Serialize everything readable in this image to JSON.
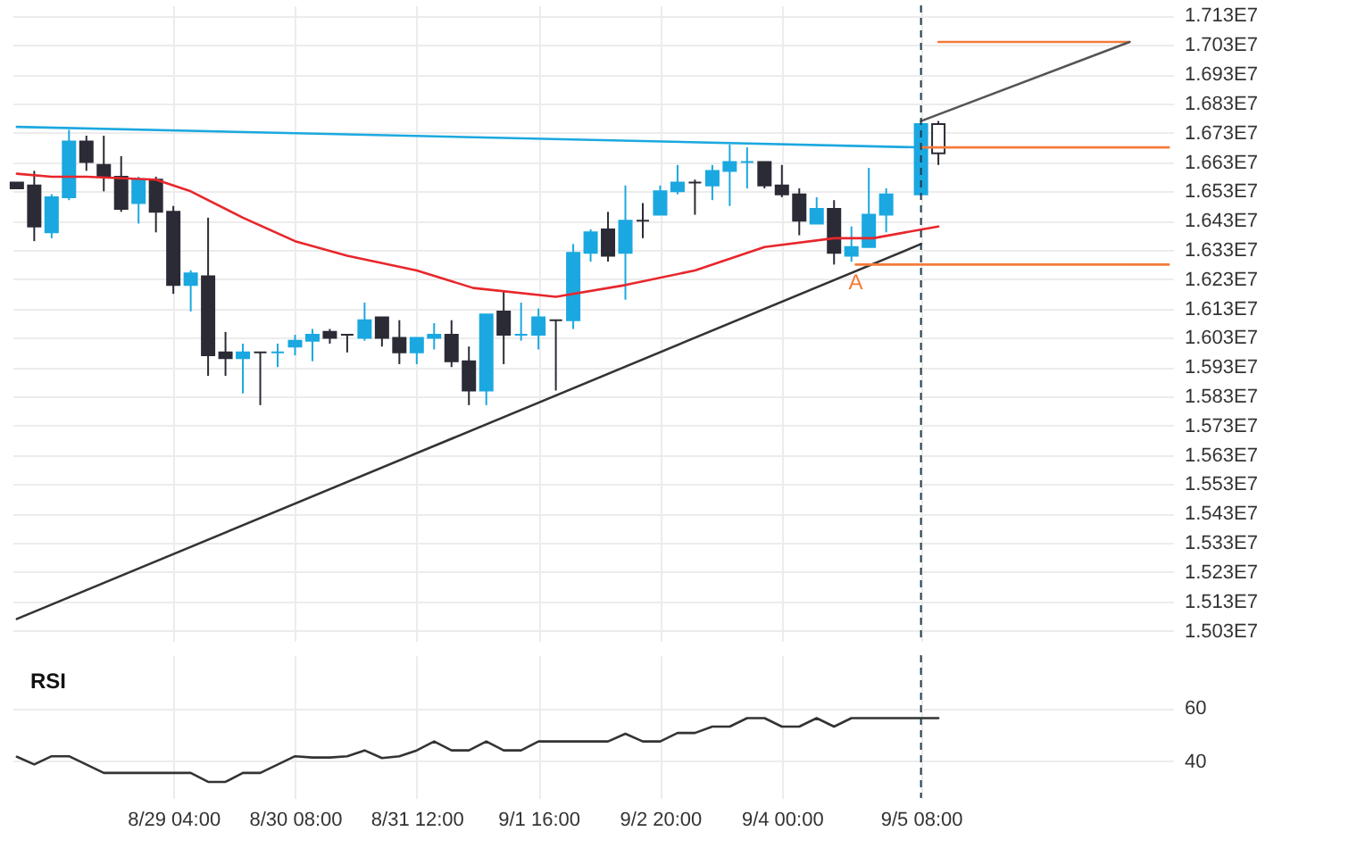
{
  "chart_data": [
    {
      "type": "candlestick",
      "x": [
        "--08-27T16:00",
        "--08-27T20:00",
        "--08-28T00:00",
        "--08-28T04:00",
        "--08-28T08:00",
        "--08-28T12:00",
        "--08-28T16:00",
        "--08-28T20:00",
        "--08-29T00:00",
        "--08-29T04:00",
        "--08-29T08:00",
        "--08-29T12:00",
        "--08-29T16:00",
        "--08-29T20:00",
        "--08-30T00:00",
        "--08-30T04:00",
        "--08-30T08:00",
        "--08-30T12:00",
        "--08-30T16:00",
        "--08-30T20:00",
        "--08-31T00:00",
        "--08-31T04:00",
        "--08-31T08:00",
        "--08-31T12:00",
        "--08-31T16:00",
        "--08-31T20:00",
        "--09-01T00:00",
        "--09-01T04:00",
        "--09-01T08:00",
        "--09-01T12:00",
        "--09-01T16:00",
        "--09-01T20:00",
        "--09-02T00:00",
        "--09-02T04:00",
        "--09-02T08:00",
        "--09-02T12:00",
        "--09-02T16:00",
        "--09-02T20:00",
        "--09-03T00:00",
        "--09-03T04:00",
        "--09-03T08:00",
        "--09-03T12:00",
        "--09-03T16:00",
        "--09-03T20:00",
        "--09-04T00:00",
        "--09-04T04:00",
        "--09-04T08:00",
        "--09-04T12:00",
        "--09-04T16:00",
        "--09-04T20:00",
        "--09-05T00:00",
        "--09-05T08:00",
        "--09-05T12:00"
      ],
      "ohlc": [
        [
          16560000,
          16560000,
          16540000,
          16540000
        ],
        [
          16550000,
          16600000,
          16360000,
          16410000
        ],
        [
          16390000,
          16520000,
          16370000,
          16510000
        ],
        [
          16510000,
          16740000,
          16500000,
          16700000
        ],
        [
          16700000,
          16720000,
          16600000,
          16630000
        ],
        [
          16620000,
          16720000,
          16530000,
          16580000
        ],
        [
          16580000,
          16650000,
          16460000,
          16470000
        ],
        [
          16490000,
          16580000,
          16420000,
          16570000
        ],
        [
          16570000,
          16580000,
          16390000,
          16460000
        ],
        [
          16460000,
          16480000,
          16180000,
          16210000
        ],
        [
          16210000,
          16260000,
          16120000,
          16250000
        ],
        [
          16240000,
          16440000,
          15900000,
          15970000
        ],
        [
          15980000,
          16050000,
          15900000,
          15960000
        ],
        [
          15960000,
          16010000,
          15840000,
          15980000
        ],
        [
          15980000,
          15980000,
          15800000,
          15980000
        ],
        [
          15980000,
          16010000,
          15930000,
          15980000
        ],
        [
          16000000,
          16040000,
          15970000,
          16020000
        ],
        [
          16020000,
          16060000,
          15950000,
          16040000
        ],
        [
          16050000,
          16060000,
          16010000,
          16030000
        ],
        [
          16040000,
          16040000,
          15980000,
          16040000
        ],
        [
          16030000,
          16150000,
          16020000,
          16090000
        ],
        [
          16100000,
          16100000,
          16000000,
          16030000
        ],
        [
          16030000,
          16090000,
          15940000,
          15980000
        ],
        [
          15980000,
          16030000,
          15940000,
          16030000
        ],
        [
          16030000,
          16080000,
          15990000,
          16040000
        ],
        [
          16040000,
          16090000,
          15930000,
          15950000
        ],
        [
          15950000,
          16000000,
          15800000,
          15850000
        ],
        [
          15850000,
          16110000,
          15800000,
          16110000
        ],
        [
          16120000,
          16190000,
          15940000,
          16040000
        ],
        [
          16040000,
          16150000,
          16020000,
          16040000
        ],
        [
          16040000,
          16130000,
          15990000,
          16100000
        ],
        [
          16090000,
          16090000,
          15850000,
          16090000
        ],
        [
          16090000,
          16350000,
          16060000,
          16320000
        ],
        [
          16320000,
          16400000,
          16290000,
          16390000
        ],
        [
          16400000,
          16460000,
          16290000,
          16310000
        ],
        [
          16320000,
          16550000,
          16160000,
          16430000
        ],
        [
          16430000,
          16490000,
          16370000,
          16430000
        ],
        [
          16450000,
          16550000,
          16450000,
          16530000
        ],
        [
          16530000,
          16620000,
          16520000,
          16560000
        ],
        [
          16560000,
          16570000,
          16450000,
          16560000
        ],
        [
          16550000,
          16620000,
          16500000,
          16600000
        ],
        [
          16600000,
          16690000,
          16480000,
          16630000
        ],
        [
          16630000,
          16680000,
          16540000,
          16630000
        ],
        [
          16630000,
          16630000,
          16540000,
          16550000
        ],
        [
          16550000,
          16620000,
          16510000,
          16520000
        ],
        [
          16520000,
          16540000,
          16380000,
          16430000
        ],
        [
          16420000,
          16510000,
          16420000,
          16470000
        ],
        [
          16470000,
          16500000,
          16280000,
          16320000
        ],
        [
          16310000,
          16410000,
          16290000,
          16340000
        ],
        [
          16340000,
          16610000,
          16340000,
          16450000
        ],
        [
          16450000,
          16540000,
          16390000,
          16520000
        ],
        [
          16520000,
          16760000,
          16520000,
          16760000
        ],
        [
          16660000,
          16770000,
          16620000,
          16760000
        ]
      ],
      "colors": [
        "#2b2b36",
        "#2b2b36",
        "#1ba8e0",
        "#1ba8e0",
        "#2b2b36",
        "#2b2b36",
        "#2b2b36",
        "#1ba8e0",
        "#2b2b36",
        "#2b2b36",
        "#1ba8e0",
        "#2b2b36",
        "#2b2b36",
        "#1ba8e0",
        "#2b2b36",
        "#1ba8e0",
        "#1ba8e0",
        "#1ba8e0",
        "#2b2b36",
        "#2b2b36",
        "#1ba8e0",
        "#2b2b36",
        "#2b2b36",
        "#1ba8e0",
        "#1ba8e0",
        "#2b2b36",
        "#2b2b36",
        "#1ba8e0",
        "#2b2b36",
        "#1ba8e0",
        "#1ba8e0",
        "#2b2b36",
        "#1ba8e0",
        "#1ba8e0",
        "#2b2b36",
        "#1ba8e0",
        "#2b2b36",
        "#1ba8e0",
        "#1ba8e0",
        "#2b2b36",
        "#1ba8e0",
        "#1ba8e0",
        "#1ba8e0",
        "#2b2b36",
        "#2b2b36",
        "#2b2b36",
        "#1ba8e0",
        "#2b2b36",
        "#1ba8e0",
        "#1ba8e0",
        "#1ba8e0",
        "#1ba8e0",
        "#ffffff"
      ],
      "series": [
        {
          "type": "line",
          "color": "#1ba8e0",
          "x": [
            "--08-27T16:00",
            "--09-05T08:00"
          ],
          "values": [
            16750000,
            16680000
          ]
        },
        {
          "type": "line",
          "color": "#333333",
          "x": [
            "--08-27T16:00",
            "--09-05T08:00"
          ],
          "values": [
            15070000,
            16350000
          ]
        },
        {
          "type": "line",
          "color": "#e8262b",
          "x": [
            "--08-27T16:00",
            "--08-28T00:00",
            "--08-28T08:00",
            "--08-29T00:00",
            "--08-29T08:00",
            "--08-29T20:00",
            "--08-30T08:00",
            "--08-30T20:00",
            "--08-31T12:00",
            "--09-01T01:00",
            "--09-01T20:00",
            "--09-02T12:00",
            "--09-03T04:00",
            "--09-03T20:00",
            "--09-04T12:00",
            "--09-04T21:00",
            "--09-05T12:00"
          ],
          "values": [
            16590000,
            16580000,
            16580000,
            16570000,
            16530000,
            16440000,
            16360000,
            16310000,
            16260000,
            16200000,
            16170000,
            16210000,
            16260000,
            16340000,
            16370000,
            16370000,
            16410000
          ]
        },
        {
          "type": "line",
          "color": "#f47b3b",
          "x": [
            "--09-05T08:00",
            "--09-07T17:00"
          ],
          "values": [
            16680000,
            16680000
          ]
        },
        {
          "type": "line",
          "name": "A",
          "color": "#f47b3b",
          "x": [
            "--09-04T17:00",
            "--09-07T17:00"
          ],
          "values": [
            16280000,
            16280000
          ]
        },
        {
          "type": "line",
          "color": "#f47b3b",
          "x": [
            "--09-05T12:00",
            "--09-07T08:00"
          ],
          "values": [
            17040000,
            17040000
          ]
        },
        {
          "type": "line",
          "color": "#555555",
          "x": [
            "--09-05T08:00",
            "--09-07T08:00"
          ],
          "values": [
            16770000,
            17040000
          ]
        }
      ],
      "xlim": [
        "--08-27T15:00",
        "--09-07T18:00"
      ],
      "ylim": [
        14995000,
        17165000
      ],
      "xticks": [
        {
          "value": "--08-29T04:00",
          "label": null
        },
        {
          "value": "--08-30T08:00",
          "label": null
        },
        {
          "value": "--08-31T12:00",
          "label": null
        },
        {
          "value": "--09-01T16:00",
          "label": null
        },
        {
          "value": "--09-02T20:00",
          "label": null
        },
        {
          "value": "--09-04T00:00",
          "label": null
        },
        {
          "value": "--09-05T08:00",
          "label": null
        }
      ],
      "yticks": [
        {
          "value": 15030000,
          "label": "1.503E7"
        },
        {
          "value": 15130000,
          "label": "1.513E7"
        },
        {
          "value": 15230000,
          "label": "1.523E7"
        },
        {
          "value": 15330000,
          "label": "1.533E7"
        },
        {
          "value": 15430000,
          "label": "1.543E7"
        },
        {
          "value": 15530000,
          "label": "1.553E7"
        },
        {
          "value": 15630000,
          "label": "1.563E7"
        },
        {
          "value": 15730000,
          "label": "1.573E7"
        },
        {
          "value": 15830000,
          "label": "1.583E7"
        },
        {
          "value": 15930000,
          "label": "1.593E7"
        },
        {
          "value": 16030000,
          "label": "1.603E7"
        },
        {
          "value": 16130000,
          "label": "1.613E7"
        },
        {
          "value": 16230000,
          "label": "1.623E7"
        },
        {
          "value": 16330000,
          "label": "1.633E7"
        },
        {
          "value": 16430000,
          "label": "1.643E7"
        },
        {
          "value": 16530000,
          "label": "1.653E7"
        },
        {
          "value": 16630000,
          "label": "1.663E7"
        },
        {
          "value": 16730000,
          "label": "1.673E7"
        },
        {
          "value": 16830000,
          "label": "1.683E7"
        },
        {
          "value": 16930000,
          "label": "1.693E7"
        },
        {
          "value": 17030000,
          "label": "1.703E7"
        },
        {
          "value": 17130000,
          "label": "1.713E7"
        }
      ],
      "tick_labels": "y",
      "grid": true,
      "ref_lines": [
        {
          "axis": "x",
          "value": "--09-05T08:00",
          "line_style": "dashed",
          "color": "#1f3b4d"
        }
      ]
    },
    {
      "type": "line",
      "title": "RSI",
      "color": "#333333",
      "x": [
        "--08-27T16:00",
        "--08-27T20:00",
        "--08-28T00:00",
        "--08-28T04:00",
        "--08-28T12:00",
        "--08-29T08:00",
        "--08-29T12:00",
        "--08-29T16:00",
        "--08-29T20:00",
        "--08-30T00:00",
        "--08-30T08:00",
        "--08-30T12:00",
        "--08-30T16:00",
        "--08-30T20:00",
        "--08-31T00:00",
        "--08-31T04:00",
        "--08-31T08:00",
        "--08-31T12:00",
        "--08-31T16:00",
        "--08-31T20:00",
        "--09-01T00:00",
        "--09-01T04:00",
        "--09-01T08:00",
        "--09-01T12:00",
        "--09-01T16:00",
        "--09-02T08:00",
        "--09-02T12:00",
        "--09-02T16:00",
        "--09-02T20:00",
        "--09-03T00:00",
        "--09-03T04:00",
        "--09-03T08:00",
        "--09-03T12:00",
        "--09-03T16:00",
        "--09-03T20:00",
        "--09-04T00:00",
        "--09-04T04:00",
        "--09-04T08:00",
        "--09-04T12:00",
        "--09-04T16:00",
        "--09-05T12:00"
      ],
      "values": [
        41.6,
        38.7,
        41.8,
        41.8,
        35.5,
        35.5,
        32.1,
        32.1,
        35.5,
        35.5,
        41.8,
        41.3,
        41.3,
        41.8,
        44.0,
        41.1,
        41.8,
        44.0,
        47.4,
        44.0,
        44.0,
        47.4,
        44.0,
        44.0,
        47.4,
        47.4,
        50.3,
        47.4,
        47.4,
        50.6,
        50.6,
        53.0,
        53.0,
        56.2,
        56.2,
        53.0,
        53.0,
        56.2,
        53.0,
        56.2,
        56.2
      ],
      "xlim": [
        "--08-27T15:00",
        "--09-07T18:00"
      ],
      "ylim": [
        26,
        80
      ],
      "xticks": [
        {
          "value": "--08-29T04:00",
          "label": "8/29 04:00"
        },
        {
          "value": "--08-30T08:00",
          "label": "8/30 08:00"
        },
        {
          "value": "--08-31T12:00",
          "label": "8/31 12:00"
        },
        {
          "value": "--09-01T16:00",
          "label": "9/1 16:00"
        },
        {
          "value": "--09-02T20:00",
          "label": "9/2 20:00"
        },
        {
          "value": "--09-04T00:00",
          "label": "9/4 00:00"
        },
        {
          "value": "--09-05T08:00",
          "label": "9/5 08:00"
        }
      ],
      "yticks": [
        40,
        60
      ],
      "grid": true,
      "ref_lines": [
        {
          "axis": "x",
          "value": "--09-05T08:00",
          "line_style": "dashed",
          "color": "#1f3b4d"
        }
      ]
    }
  ]
}
